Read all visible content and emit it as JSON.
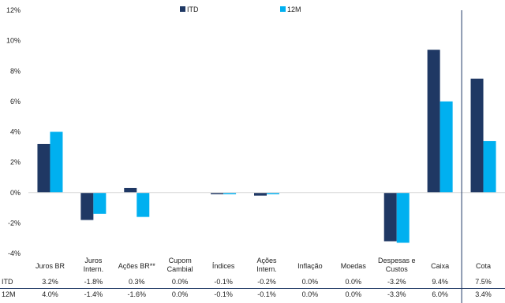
{
  "chart_data": {
    "type": "bar",
    "categories": [
      [
        "Juros BR"
      ],
      [
        "Juros",
        "Intern."
      ],
      [
        "Ações BR**"
      ],
      [
        "Cupom",
        "Cambial"
      ],
      [
        "Índices"
      ],
      [
        "Ações",
        "Intern."
      ],
      [
        "Inflação"
      ],
      [
        "Moedas"
      ],
      [
        "Despesas e",
        "Custos"
      ],
      [
        "Caixa"
      ],
      [
        "Cota"
      ]
    ],
    "series": [
      {
        "name": "ITD",
        "color": "#1f3864",
        "values": [
          3.2,
          -1.8,
          0.3,
          0.0,
          -0.1,
          -0.2,
          0.0,
          0.0,
          -3.2,
          9.4,
          7.5
        ],
        "labels": [
          "3.2%",
          "-1.8%",
          "0.3%",
          "0.0%",
          "-0.1%",
          "-0.2%",
          "0.0%",
          "0.0%",
          "-3.2%",
          "9.4%",
          "7.5%"
        ]
      },
      {
        "name": "12M",
        "color": "#00b0f0",
        "values": [
          4.0,
          -1.4,
          -1.6,
          0.0,
          -0.1,
          -0.1,
          0.0,
          0.0,
          -3.3,
          6.0,
          3.4
        ],
        "labels": [
          "4.0%",
          "-1.4%",
          "-1.6%",
          "0.0%",
          "-0.1%",
          "-0.1%",
          "0.0%",
          "0.0%",
          "-3.3%",
          "6.0%",
          "3.4%"
        ]
      }
    ],
    "ylim": [
      -4,
      12
    ],
    "yticks": [
      -4,
      -2,
      0,
      2,
      4,
      6,
      8,
      10,
      12
    ],
    "ytick_labels": [
      "-4%",
      "-2%",
      "0%",
      "2%",
      "4%",
      "6%",
      "8%",
      "10%",
      "12%"
    ],
    "legend_position": "top",
    "grid": false,
    "separator_before_category": "Cota"
  }
}
